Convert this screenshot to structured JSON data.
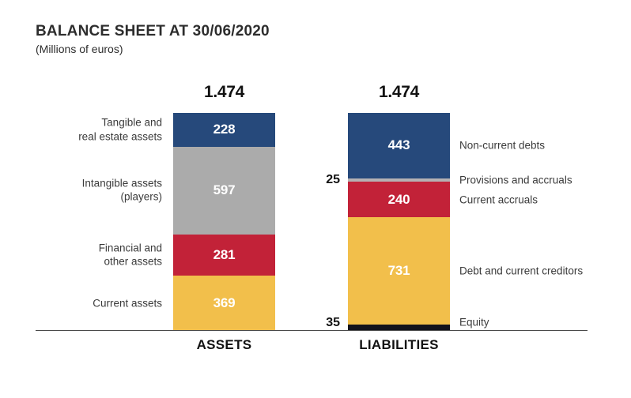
{
  "header": {
    "title": "BALANCE SHEET AT 30/06/2020",
    "subtitle": "(Millions of euros)"
  },
  "colors": {
    "navy": "#26497B",
    "gray": "#ABABAB",
    "light_gray": "#B5B1B3",
    "red": "#C22238",
    "yellow": "#F2BF4B",
    "near_black": "#12121C",
    "baseline": "#4A4A4A",
    "text_dark": "#121212",
    "label_text": "#3B3B3B"
  },
  "chart_data": {
    "type": "bar",
    "subtype": "stacked_column_pair",
    "title": "BALANCE SHEET AT 30/06/2020",
    "unit": "Millions of euros",
    "legend": "none",
    "grid": false,
    "columns": [
      {
        "name": "ASSETS",
        "total": 1474,
        "total_label": "1.474",
        "segments": [
          {
            "label": "Tangible and\nreal estate assets",
            "value": 228,
            "value_label": "228",
            "color": "#26497B",
            "value_position": "inside",
            "label_side": "left"
          },
          {
            "label": "Intangible assets\n(players)",
            "value": 597,
            "value_label": "597",
            "color": "#ABABAB",
            "value_position": "inside",
            "label_side": "left"
          },
          {
            "label": "Financial and\nother assets",
            "value": 281,
            "value_label": "281",
            "color": "#C22238",
            "value_position": "inside",
            "label_side": "left"
          },
          {
            "label": "Current assets",
            "value": 369,
            "value_label": "369",
            "color": "#F2BF4B",
            "value_position": "inside",
            "label_side": "left"
          }
        ]
      },
      {
        "name": "LIABILITIES",
        "total": 1474,
        "total_label": "1.474",
        "segments": [
          {
            "label": "Non-current debts",
            "value": 443,
            "value_label": "443",
            "color": "#26497B",
            "value_position": "inside",
            "label_side": "right"
          },
          {
            "label": "Provisions and accruals",
            "value": 25,
            "value_label": "25",
            "color": "#B5B1B3",
            "value_position": "outside-left",
            "label_side": "right"
          },
          {
            "label": "Current accruals",
            "value": 240,
            "value_label": "240",
            "color": "#C22238",
            "value_position": "inside",
            "label_side": "right"
          },
          {
            "label": "Debt and current creditors",
            "value": 731,
            "value_label": "731",
            "color": "#F2BF4B",
            "value_position": "inside",
            "label_side": "right"
          },
          {
            "label": "Equity",
            "value": 35,
            "value_label": "35",
            "color": "#12121C",
            "value_position": "outside-left",
            "label_side": "right"
          }
        ]
      }
    ]
  }
}
